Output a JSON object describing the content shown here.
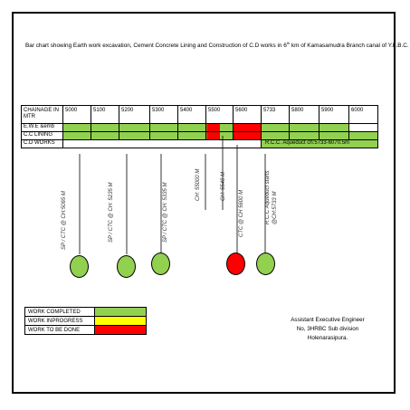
{
  "title_part1": "Bar chart showing Earth work excavation, Cement Concrete Lining and Construction of C.D works in 6",
  "title_sup": "th",
  "title_part2": " km of Kamasamudra Branch canal of Y.L.B.C.",
  "table": {
    "header_label": "CHAINAGE IN MTR",
    "chainages": [
      "5000",
      "5100",
      "5200",
      "5300",
      "5400",
      "5500",
      "5600",
      "5733",
      "5800",
      "5900",
      "6000"
    ],
    "rows": [
      {
        "label": "E.W.E &emb",
        "segments": [
          "done",
          "done",
          "done",
          "done",
          "done",
          "pending",
          "done",
          "pending",
          "done",
          "done",
          "blank"
        ]
      },
      {
        "label": "C.C LINING",
        "segments": [
          "done",
          "done",
          "done",
          "done",
          "done",
          "pending",
          "pending",
          "done",
          "done",
          "done",
          "done"
        ]
      },
      {
        "label": "C.D WORKS",
        "aqueduct_text": "R.C.C. Aqueduct ch:5733-6070.5m"
      }
    ]
  },
  "cd_works": [
    {
      "label": "SP / CTC @ CH:5065 M",
      "status": "completed"
    },
    {
      "label": "SP / CTC @ CH: 5235 M",
      "status": "completed"
    },
    {
      "label": "SP / CTC @ CH: 5335 M",
      "status": "completed"
    },
    {
      "label": "CH: 55000 M",
      "status": "none"
    },
    {
      "label": "CH: 5548 M",
      "status": "none"
    },
    {
      "label": "CTC @ CH 5600 M",
      "status": "to_be_done"
    },
    {
      "label": "R.C.C Aqueduct starts @CH:5733 M",
      "status": "completed"
    }
  ],
  "legend": [
    {
      "label": "WORK COMPLETED",
      "color": "#92d050"
    },
    {
      "label": "WORK INPROGRESS",
      "color": "#ffff00"
    },
    {
      "label": "WORK TO BE DONE",
      "color": "#ff0000"
    }
  ],
  "signature": {
    "line1": "Assistant Executive Engineer",
    "line2": "No, 3HRBC Sub division",
    "line3": "Holenarasipura."
  }
}
